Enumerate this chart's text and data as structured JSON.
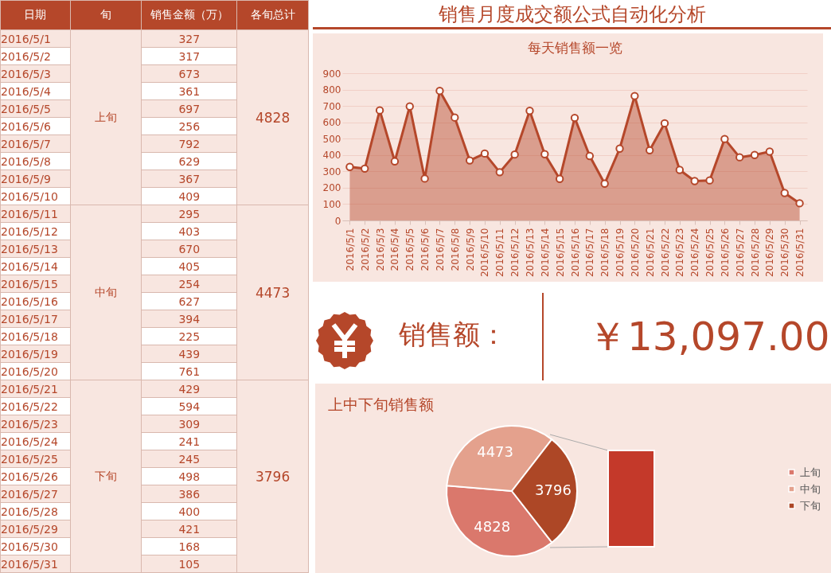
{
  "chart_data": [
    {
      "type": "other",
      "categories": [
        "2016/5/1",
        "2016/5/2",
        "2016/5/3",
        "2016/5/4",
        "2016/5/5",
        "2016/5/6",
        "2016/5/7",
        "2016/5/8",
        "2016/5/9",
        "2016/5/10",
        "2016/5/11",
        "2016/5/12",
        "2016/5/13",
        "2016/5/14",
        "2016/5/15",
        "2016/5/16",
        "2016/5/17",
        "2016/5/18",
        "2016/5/19",
        "2016/5/20",
        "2016/5/21",
        "2016/5/22",
        "2016/5/23",
        "2016/5/24",
        "2016/5/25",
        "2016/5/26",
        "2016/5/27",
        "2016/5/28",
        "2016/5/29",
        "2016/5/30",
        "2016/5/31"
      ],
      "values": [
        327,
        317,
        673,
        361,
        697,
        256,
        792,
        629,
        367,
        409,
        295,
        403,
        670,
        405,
        254,
        627,
        394,
        225,
        439,
        761,
        429,
        594,
        309,
        241,
        245,
        498,
        386,
        400,
        421,
        168,
        105
      ],
      "data_labels": true,
      "annotations": [
        "日期",
        "旬",
        "销售金额（万）",
        "各旬总计",
        "上旬",
        "4828",
        "中旬",
        "4473",
        "下旬",
        "3796"
      ]
    },
    {
      "type": "area",
      "title": "销售月度成交额公式自动化分析",
      "subtitle": "每天销售额一览",
      "categories": [
        "2016/5/1",
        "2016/5/2",
        "2016/5/3",
        "2016/5/4",
        "2016/5/5",
        "2016/5/6",
        "2016/5/7",
        "2016/5/8",
        "2016/5/9",
        "2016/5/10",
        "2016/5/11",
        "2016/5/12",
        "2016/5/13",
        "2016/5/14",
        "2016/5/15",
        "2016/5/16",
        "2016/5/17",
        "2016/5/18",
        "2016/5/19",
        "2016/5/20",
        "2016/5/21",
        "2016/5/22",
        "2016/5/23",
        "2016/5/24",
        "2016/5/25",
        "2016/5/26",
        "2016/5/27",
        "2016/5/28",
        "2016/5/29",
        "2016/5/30",
        "2016/5/31"
      ],
      "series": [
        {
          "color": "#b5472a",
          "values": [
            327,
            317,
            673,
            361,
            697,
            256,
            792,
            629,
            367,
            409,
            295,
            403,
            670,
            405,
            254,
            627,
            394,
            225,
            439,
            761,
            429,
            594,
            309,
            241,
            245,
            498,
            386,
            400,
            421,
            168,
            105
          ]
        }
      ],
      "ylim": [
        0,
        900
      ],
      "yticks": [
        0,
        100,
        200,
        300,
        400,
        500,
        600,
        700,
        800,
        900
      ],
      "grid": "y",
      "marker": "circle"
    },
    {
      "type": "other",
      "annotations": [
        "销售额：",
        "￥13,097.00"
      ]
    },
    {
      "type": "pie",
      "title": "上中下旬销售额",
      "categories": [
        "上旬",
        "中旬",
        "下旬"
      ],
      "values": [
        4828,
        4473,
        3796
      ],
      "colors": [
        "#da786c",
        "#e4a18d",
        "#ad4726"
      ],
      "data_labels": true,
      "legend": "right"
    }
  ]
}
